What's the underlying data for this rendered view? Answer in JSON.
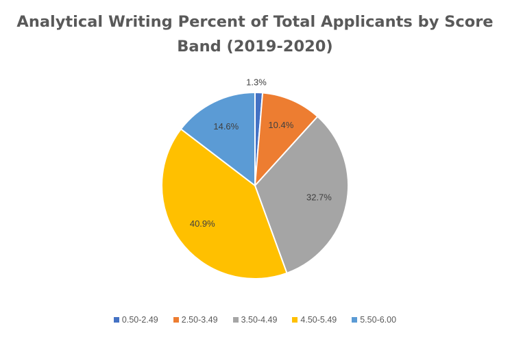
{
  "chart_data": {
    "type": "pie",
    "title_lines": [
      "Analytical Writing  Percent of Total Applicants by Score",
      "Band (2019-2020)"
    ],
    "categories": [
      "0.50-2.49",
      "2.50-3.49",
      "3.50-4.49",
      "4.50-5.49",
      "5.50-6.00"
    ],
    "values": [
      1.3,
      10.4,
      32.7,
      40.9,
      14.6
    ],
    "data_labels": [
      "1.3%",
      "10.4%",
      "32.7%",
      "40.9%",
      "14.6%"
    ],
    "colors": [
      "#4472C4",
      "#ED7D31",
      "#A5A5A5",
      "#FFC000",
      "#5B9BD5"
    ],
    "start_angle_deg": 0,
    "direction": "clockwise",
    "legend_position": "bottom"
  }
}
